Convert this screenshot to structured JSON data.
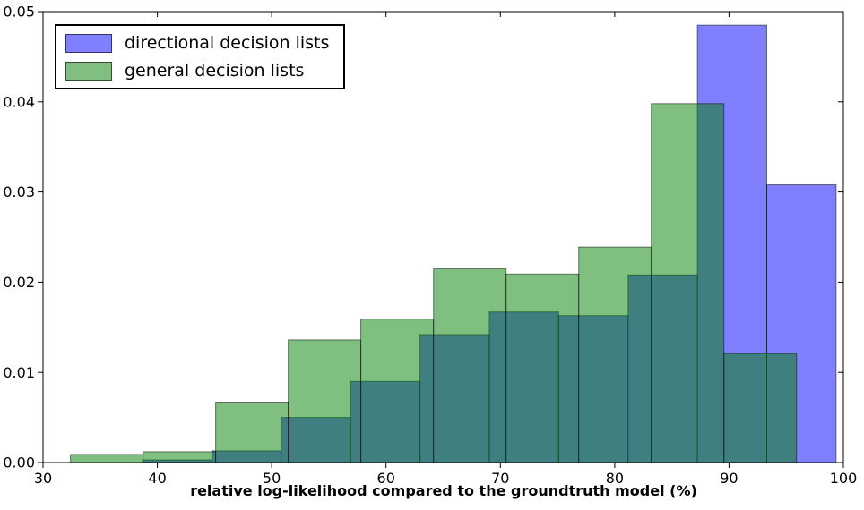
{
  "chart_data": {
    "type": "histogram",
    "title": "",
    "xlabel": "relative log-likelihood compared to the groundtruth model (%)",
    "ylabel": "",
    "xlim": [
      30,
      100
    ],
    "ylim": [
      0,
      0.05
    ],
    "x_ticks": [
      30,
      40,
      50,
      60,
      70,
      80,
      90,
      100
    ],
    "y_ticks": [
      0,
      0.01,
      0.02,
      0.03,
      0.04,
      0.05
    ],
    "y_tick_labels": [
      "0.00",
      "0.01",
      "0.02",
      "0.03",
      "0.04",
      "0.05"
    ],
    "grid": false,
    "legend_position": "upper left",
    "colors": {
      "directional_fill": "rgba(0,0,255,0.5)",
      "general_fill": "rgba(0,128,0,0.5)",
      "overlap_visual": "#3f7f7f",
      "directional_legend": "#8080ff",
      "general_legend": "#80bf80",
      "bar_edge": "rgba(0,0,0,0.5)",
      "axis": "#000000"
    },
    "series": [
      {
        "name": "directional decision lists",
        "fill": "rgba(0,0,255,0.5)",
        "legend_color": "#8080ff",
        "bin_edges": [
          38.7,
          44.77,
          50.83,
          56.9,
          62.97,
          69.03,
          75.1,
          81.17,
          87.23,
          93.3,
          99.37
        ],
        "densities": [
          0.0003,
          0.0013,
          0.005,
          0.009,
          0.0142,
          0.0167,
          0.0163,
          0.0208,
          0.0485,
          0.0308
        ]
      },
      {
        "name": "general decision lists",
        "fill": "rgba(0,128,0,0.5)",
        "legend_color": "#80bf80",
        "bin_edges": [
          32.4,
          38.75,
          45.1,
          51.45,
          57.8,
          64.15,
          70.5,
          76.85,
          83.2,
          89.55,
          95.9
        ],
        "densities": [
          0.0009,
          0.0012,
          0.0067,
          0.0136,
          0.0159,
          0.0215,
          0.0209,
          0.0239,
          0.0398,
          0.0121
        ]
      }
    ]
  }
}
